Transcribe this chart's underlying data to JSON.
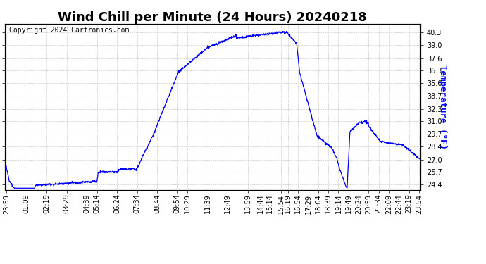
{
  "title": "Wind Chill per Minute (24 Hours) 20240218",
  "ylabel": "Temperature (°F)",
  "copyright_text": "Copyright 2024 Cartronics.com",
  "line_color": "blue",
  "background_color": "white",
  "grid_color": "#bbbbbb",
  "ytick_labels": [
    "24.4",
    "25.7",
    "27.0",
    "28.4",
    "29.7",
    "31.0",
    "32.3",
    "33.7",
    "35.0",
    "36.3",
    "37.6",
    "39.0",
    "40.3"
  ],
  "ytick_values": [
    24.4,
    25.7,
    27.0,
    28.4,
    29.7,
    31.0,
    32.3,
    33.7,
    35.0,
    36.3,
    37.6,
    39.0,
    40.3
  ],
  "ylim": [
    23.8,
    41.2
  ],
  "x_labels": [
    "23:59",
    "01:09",
    "02:19",
    "03:29",
    "04:39",
    "05:14",
    "06:24",
    "07:34",
    "08:44",
    "09:54",
    "10:29",
    "11:39",
    "12:49",
    "13:59",
    "14:44",
    "15:14",
    "15:54",
    "16:19",
    "16:54",
    "17:29",
    "18:04",
    "18:39",
    "19:14",
    "19:49",
    "20:24",
    "20:59",
    "21:34",
    "22:09",
    "22:44",
    "23:19",
    "23:54"
  ],
  "title_fontsize": 13,
  "ylabel_fontsize": 9,
  "tick_fontsize": 7,
  "copyright_fontsize": 7
}
